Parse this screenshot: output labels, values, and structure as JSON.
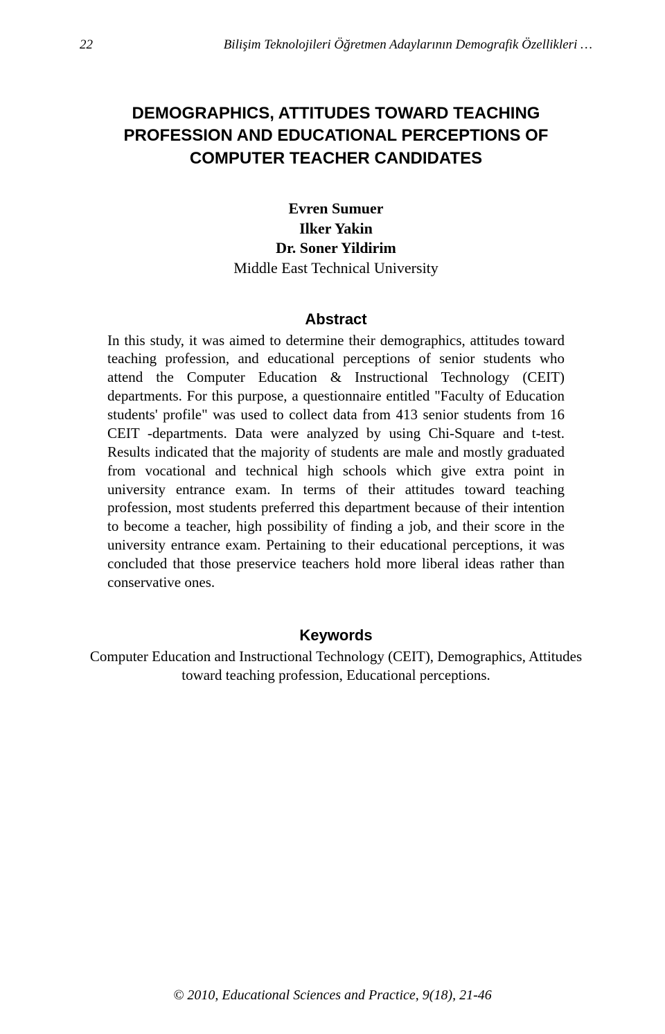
{
  "header": {
    "page_number": "22",
    "running_title": "Bilişim Teknolojileri Öğretmen Adaylarının Demografik Özellikleri …"
  },
  "title": "DEMOGRAPHICS, ATTITUDES TOWARD TEACHING PROFESSION AND EDUCATIONAL PERCEPTIONS OF COMPUTER TEACHER CANDIDATES",
  "authors": {
    "name1": "Evren Sumuer",
    "name2": "Ilker Yakin",
    "name3": "Dr. Soner Yildirim",
    "affiliation": "Middle East Technical University"
  },
  "abstract": {
    "heading": "Abstract",
    "body": "In this study, it was aimed to determine their demographics, attitudes toward teaching profession, and educational perceptions of senior students who attend the Computer Education & Instructional Technology (CEIT) departments. For this purpose, a questionnaire entitled \"Faculty of Education students' profile\" was used to collect data from 413 senior students from 16 CEIT -departments. Data were analyzed by using Chi-Square and t-test. Results indicated that the majority of students are male and mostly graduated from vocational and technical high schools which give extra point in university entrance exam. In terms of their attitudes toward teaching profession, most students preferred this department because of their intention to become a teacher, high possibility of finding a job, and their score in the university entrance exam. Pertaining to their educational perceptions, it was concluded that those preservice teachers hold more liberal ideas rather than conservative ones."
  },
  "keywords": {
    "heading": "Keywords",
    "body": "Computer Education and Instructional Technology (CEIT), Demographics, Attitudes toward teaching profession, Educational perceptions."
  },
  "footer": "© 2010, Educational Sciences and Practice, 9(18), 21-46"
}
